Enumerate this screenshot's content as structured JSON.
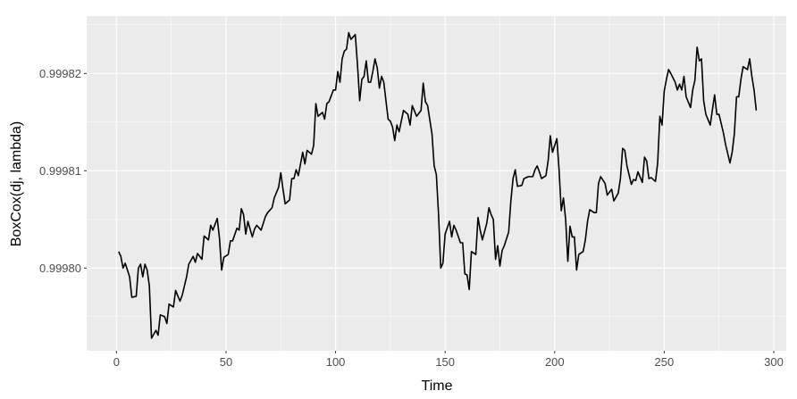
{
  "chart_data": {
    "type": "line",
    "x_label": "Time",
    "y_label": "BoxCox(dj, lambda)",
    "color": "#000000",
    "grid": true,
    "xlim": [
      -13.6,
      305.7
    ],
    "ylim": [
      0.9997915,
      0.9998259
    ],
    "xticks": [
      0,
      50,
      100,
      150,
      200,
      250,
      300
    ],
    "yticks": [
      {
        "value": 0.9998,
        "label": "0.99980"
      },
      0.99981,
      0.99982
    ],
    "x": [
      1,
      2,
      3,
      4,
      6,
      7,
      9,
      10,
      11,
      12,
      13,
      14,
      15,
      16,
      18,
      19,
      20,
      22,
      23,
      24,
      26,
      27,
      29,
      30,
      32,
      33,
      35,
      36,
      37,
      39,
      40,
      42,
      43,
      44,
      46,
      47,
      48,
      49,
      51,
      52,
      53,
      55,
      56,
      57,
      58,
      59,
      60,
      62,
      63,
      64,
      66,
      68,
      69,
      71,
      72,
      74,
      75,
      76,
      77,
      79,
      80,
      81,
      82,
      83,
      85,
      86,
      87,
      89,
      90,
      91,
      92,
      94,
      95,
      96,
      97,
      99,
      100,
      101,
      102,
      103,
      104,
      105,
      106,
      107,
      109,
      110,
      111,
      112,
      113,
      114,
      115,
      116,
      117,
      118,
      119,
      120,
      121,
      122,
      124,
      125,
      126,
      127,
      128,
      129,
      131,
      133,
      134,
      135,
      137,
      139,
      140,
      141,
      142,
      144,
      145,
      146,
      147,
      148,
      149,
      150,
      152,
      153,
      154,
      155,
      157,
      158,
      159,
      160,
      161,
      162,
      164,
      165,
      166,
      167,
      169,
      170,
      171,
      172,
      173,
      174,
      175,
      176,
      177,
      179,
      180,
      181,
      182,
      183,
      185,
      186,
      187,
      188,
      190,
      191,
      192,
      193,
      194,
      196,
      197,
      198,
      199,
      201,
      202,
      203,
      204,
      205,
      206,
      207,
      208,
      209,
      210,
      211,
      213,
      214,
      215,
      216,
      218,
      219,
      220,
      221,
      223,
      224,
      225,
      226,
      227,
      229,
      230,
      231,
      232,
      233,
      235,
      236,
      237,
      238,
      240,
      241,
      242,
      243,
      244,
      246,
      247,
      248,
      249,
      250,
      251,
      252,
      253,
      255,
      256,
      257,
      258,
      259,
      260,
      262,
      263,
      264,
      265,
      266,
      267,
      268,
      269,
      271,
      272,
      273,
      274,
      275,
      277,
      278,
      280,
      281,
      282,
      283,
      284,
      285,
      286,
      288,
      289,
      290,
      291,
      292
    ],
    "values": [
      0.9998017,
      0.9998012,
      0.9998,
      0.9998005,
      0.9997991,
      0.999797,
      0.9997971,
      0.9998,
      0.9998004,
      0.9997991,
      0.9998004,
      0.9997998,
      0.9997982,
      0.9997928,
      0.9997936,
      0.9997931,
      0.9997952,
      0.999795,
      0.9997943,
      0.9997963,
      0.999796,
      0.9997977,
      0.9997966,
      0.9997972,
      0.9997991,
      0.9998004,
      0.9998012,
      0.9998006,
      0.9998015,
      0.9998009,
      0.9998033,
      0.9998029,
      0.9998044,
      0.9998039,
      0.9998051,
      0.9998031,
      0.9997998,
      0.9998011,
      0.9998014,
      0.9998028,
      0.9998028,
      0.9998041,
      0.9998039,
      0.9998061,
      0.9998055,
      0.9998035,
      0.9998048,
      0.9998032,
      0.999804,
      0.9998044,
      0.9998039,
      0.9998053,
      0.9998057,
      0.9998062,
      0.9998072,
      0.9998083,
      0.9998098,
      0.9998081,
      0.9998066,
      0.999807,
      0.9998092,
      0.9998092,
      0.9998101,
      0.9998095,
      0.9998119,
      0.9998107,
      0.9998121,
      0.9998117,
      0.9998126,
      0.9998169,
      0.9998156,
      0.999816,
      0.9998153,
      0.9998169,
      0.9998171,
      0.9998183,
      0.9998183,
      0.9998202,
      0.9998191,
      0.9998215,
      0.9998223,
      0.9998225,
      0.9998242,
      0.9998235,
      0.999824,
      0.9998209,
      0.9998172,
      0.9998194,
      0.9998197,
      0.9998213,
      0.9998191,
      0.9998191,
      0.9998202,
      0.9998215,
      0.9998206,
      0.9998185,
      0.9998197,
      0.9998191,
      0.9998153,
      0.9998151,
      0.9998145,
      0.9998131,
      0.9998147,
      0.999814,
      0.9998162,
      0.9998158,
      0.9998147,
      0.9998167,
      0.9998156,
      0.9998162,
      0.999819,
      0.9998171,
      0.9998167,
      0.9998138,
      0.9998105,
      0.9998096,
      0.9998055,
      0.9998,
      0.9998005,
      0.9998035,
      0.9998048,
      0.9998032,
      0.9998044,
      0.9998039,
      0.9998026,
      0.9998026,
      0.9997994,
      0.9997993,
      0.9997978,
      0.9998017,
      0.9998014,
      0.9998052,
      0.9998039,
      0.9998029,
      0.9998046,
      0.9998062,
      0.9998055,
      0.999805,
      0.9998009,
      0.9998023,
      0.9998002,
      0.9998018,
      0.9998023,
      0.9998037,
      0.9998069,
      0.9998092,
      0.9998101,
      0.9998084,
      0.9998085,
      0.9998092,
      0.9998093,
      0.9998094,
      0.9998094,
      0.9998101,
      0.9998105,
      0.9998099,
      0.9998092,
      0.9998095,
      0.999811,
      0.9998136,
      0.9998119,
      0.9998133,
      0.9998101,
      0.9998059,
      0.9998072,
      0.999805,
      0.9998007,
      0.9998043,
      0.9998032,
      0.9998032,
      0.9997998,
      0.9998014,
      0.9998017,
      0.9998029,
      0.9998048,
      0.999806,
      0.9998057,
      0.9998057,
      0.9998087,
      0.9998094,
      0.9998087,
      0.9998075,
      0.9998078,
      0.9998081,
      0.9998069,
      0.9998077,
      0.9998092,
      0.9998123,
      0.9998121,
      0.9998105,
      0.9998086,
      0.9998091,
      0.999809,
      0.9998099,
      0.9998088,
      0.9998114,
      0.999811,
      0.9998092,
      0.9998093,
      0.9998089,
      0.9998108,
      0.9998156,
      0.9998147,
      0.9998182,
      0.9998194,
      0.9998204,
      0.99982,
      0.9998191,
      0.9998183,
      0.9998189,
      0.9998183,
      0.9998197,
      0.9998176,
      0.9998165,
      0.9998183,
      0.9998193,
      0.9998227,
      0.9998213,
      0.9998215,
      0.9998172,
      0.9998158,
      0.9998147,
      0.9998163,
      0.9998178,
      0.9998158,
      0.9998158,
      0.9998139,
      0.9998127,
      0.9998108,
      0.9998119,
      0.9998138,
      0.9998176,
      0.9998176,
      0.9998194,
      0.9998207,
      0.9998204,
      0.9998215,
      0.9998197,
      0.9998183,
      0.9998162
    ]
  }
}
